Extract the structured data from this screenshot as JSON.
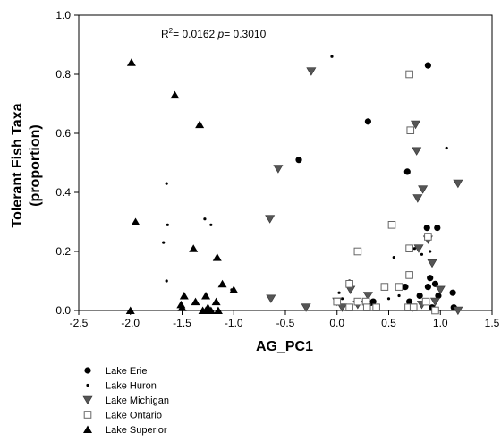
{
  "chart_data": {
    "type": "scatter",
    "title": "",
    "xlabel": "AG_PC1",
    "ylabel_line1": "Tolerant Fish Taxa",
    "ylabel_line2": "(proportion)",
    "xlim": [
      -2.5,
      1.5
    ],
    "ylim": [
      0.0,
      1.0
    ],
    "xticks": [
      "-2.5",
      "-2.0",
      "-1.5",
      "-1.0",
      "-0.5",
      "0.0",
      "0.5",
      "1.0",
      "1.5"
    ],
    "yticks": [
      "0.0",
      "0.2",
      "0.4",
      "0.6",
      "0.8",
      "1.0"
    ],
    "grid": false,
    "legend_position": "bottom-left (outside)",
    "annotation": {
      "r2_prefix": "R",
      "r2_sup": "2",
      "r2_rest": "= 0.0162 ",
      "p_label": "p",
      "p_rest": "= 0.3010"
    },
    "series": [
      {
        "name": "Lake Erie",
        "marker": "circle-filled",
        "points": [
          [
            -0.37,
            0.51
          ],
          [
            0.3,
            0.64
          ],
          [
            0.68,
            0.47
          ],
          [
            0.88,
            0.83
          ],
          [
            0.87,
            0.28
          ],
          [
            0.97,
            0.28
          ],
          [
            0.9,
            0.11
          ],
          [
            0.88,
            0.08
          ],
          [
            0.95,
            0.09
          ],
          [
            0.98,
            0.05
          ],
          [
            1.12,
            0.06
          ],
          [
            0.66,
            0.08
          ],
          [
            0.8,
            0.05
          ],
          [
            0.92,
            0.01
          ],
          [
            1.13,
            0.01
          ],
          [
            0.35,
            0.03
          ],
          [
            0.7,
            0.03
          ]
        ]
      },
      {
        "name": "Lake Huron",
        "marker": "small-dot",
        "points": [
          [
            -1.65,
            0.43
          ],
          [
            -1.64,
            0.29
          ],
          [
            -1.68,
            0.23
          ],
          [
            -1.65,
            0.1
          ],
          [
            -1.28,
            0.31
          ],
          [
            -1.22,
            0.29
          ],
          [
            -0.05,
            0.86
          ],
          [
            1.06,
            0.55
          ],
          [
            0.12,
            0.1
          ],
          [
            0.02,
            0.06
          ],
          [
            0.05,
            0.04
          ],
          [
            0.55,
            0.18
          ],
          [
            0.75,
            0.21
          ],
          [
            0.82,
            0.19
          ],
          [
            -1.02,
            0.07
          ],
          [
            0.9,
            0.2
          ],
          [
            0.33,
            0.02
          ],
          [
            0.5,
            0.04
          ],
          [
            0.6,
            0.05
          ]
        ]
      },
      {
        "name": "Lake Michigan",
        "marker": "triangle-down-filled",
        "points": [
          [
            -0.25,
            0.81
          ],
          [
            -0.57,
            0.48
          ],
          [
            -0.65,
            0.31
          ],
          [
            -0.64,
            0.04
          ],
          [
            0.76,
            0.63
          ],
          [
            0.77,
            0.54
          ],
          [
            1.17,
            0.43
          ],
          [
            0.83,
            0.41
          ],
          [
            0.78,
            0.38
          ],
          [
            0.79,
            0.21
          ],
          [
            0.88,
            0.24
          ],
          [
            0.92,
            0.16
          ],
          [
            0.3,
            0.05
          ],
          [
            0.0,
            0.03
          ],
          [
            0.2,
            0.02
          ],
          [
            -0.3,
            0.01
          ],
          [
            0.05,
            0.01
          ],
          [
            0.73,
            0.01
          ],
          [
            0.82,
            0.02
          ],
          [
            1.0,
            0.07
          ],
          [
            1.17,
            0.0
          ],
          [
            0.95,
            0.03
          ],
          [
            0.13,
            0.07
          ]
        ]
      },
      {
        "name": "Lake Ontario",
        "marker": "square-open",
        "points": [
          [
            0.7,
            0.8
          ],
          [
            0.71,
            0.61
          ],
          [
            0.7,
            0.21
          ],
          [
            0.7,
            0.12
          ],
          [
            0.69,
            0.01
          ],
          [
            0.74,
            0.01
          ],
          [
            0.53,
            0.29
          ],
          [
            0.2,
            0.2
          ],
          [
            0.12,
            0.09
          ],
          [
            0.12,
            0.01
          ],
          [
            0.2,
            0.03
          ],
          [
            0.28,
            0.03
          ],
          [
            0.29,
            0.01
          ],
          [
            0.6,
            0.08
          ],
          [
            0.46,
            0.08
          ],
          [
            0.86,
            0.03
          ],
          [
            0.88,
            0.25
          ],
          [
            0.95,
            0.0
          ],
          [
            0.0,
            0.03
          ],
          [
            0.38,
            0.01
          ]
        ]
      },
      {
        "name": "Lake Superior",
        "marker": "triangle-up-filled",
        "points": [
          [
            -1.99,
            0.84
          ],
          [
            -1.57,
            0.73
          ],
          [
            -1.33,
            0.63
          ],
          [
            -1.95,
            0.3
          ],
          [
            -1.39,
            0.21
          ],
          [
            -1.16,
            0.18
          ],
          [
            -1.11,
            0.09
          ],
          [
            -1.0,
            0.07
          ],
          [
            -2.0,
            0.0
          ],
          [
            -1.48,
            0.05
          ],
          [
            -1.27,
            0.05
          ],
          [
            -1.51,
            0.02
          ],
          [
            -1.5,
            0.01
          ],
          [
            -1.3,
            0.0
          ],
          [
            -1.25,
            0.01
          ],
          [
            -1.22,
            0.0
          ],
          [
            -1.17,
            0.03
          ],
          [
            -1.15,
            0.0
          ],
          [
            -1.27,
            0.0
          ],
          [
            -1.37,
            0.03
          ]
        ]
      }
    ]
  }
}
